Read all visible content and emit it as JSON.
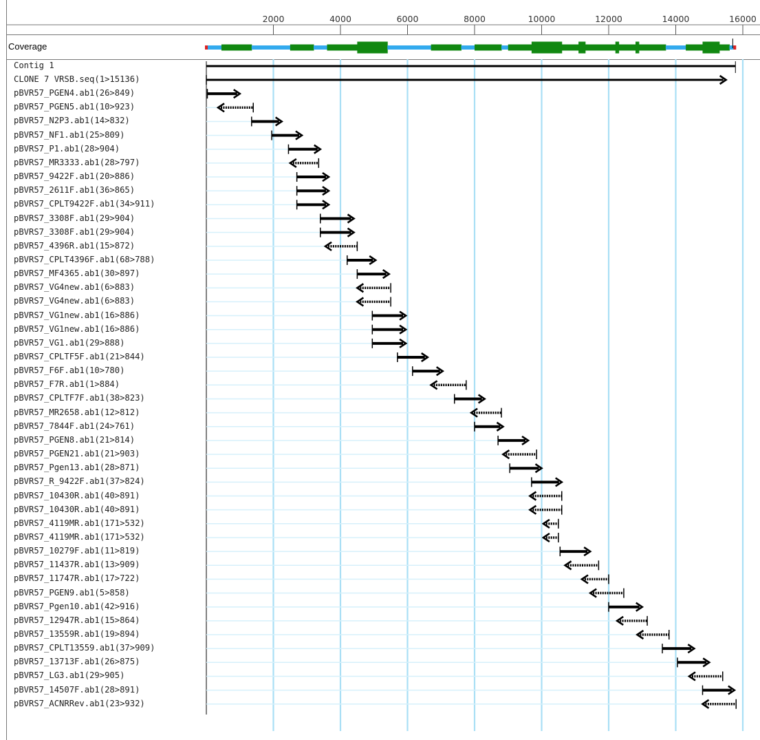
{
  "ruler": {
    "ticks": [
      {
        "value": 2000,
        "label": "2000"
      },
      {
        "value": 4000,
        "label": "4000"
      },
      {
        "value": 6000,
        "label": "6000"
      },
      {
        "value": 8000,
        "label": "8000"
      },
      {
        "value": 10000,
        "label": "10000"
      },
      {
        "value": 12000,
        "label": "12000"
      },
      {
        "value": 14000,
        "label": "14000"
      },
      {
        "value": 16000,
        "label": "16000"
      }
    ]
  },
  "coverage": {
    "label": "Coverage",
    "colors": {
      "single": "#33aaee",
      "double": "#118811",
      "end": "#dd2222"
    },
    "segments": [
      {
        "start": 0,
        "end": 450,
        "depth": 1
      },
      {
        "start": 450,
        "end": 1350,
        "depth": 2
      },
      {
        "start": 1350,
        "end": 2500,
        "depth": 1
      },
      {
        "start": 2500,
        "end": 3200,
        "depth": 2
      },
      {
        "start": 3200,
        "end": 3600,
        "depth": 1
      },
      {
        "start": 3600,
        "end": 4500,
        "depth": 2
      },
      {
        "start": 4500,
        "end": 5400,
        "depth": 3
      },
      {
        "start": 5400,
        "end": 6700,
        "depth": 1
      },
      {
        "start": 6700,
        "end": 7600,
        "depth": 2
      },
      {
        "start": 7600,
        "end": 8000,
        "depth": 1
      },
      {
        "start": 8000,
        "end": 8800,
        "depth": 2
      },
      {
        "start": 8800,
        "end": 9000,
        "depth": 1
      },
      {
        "start": 9000,
        "end": 9700,
        "depth": 2
      },
      {
        "start": 9700,
        "end": 10600,
        "depth": 3
      },
      {
        "start": 10600,
        "end": 11100,
        "depth": 2
      },
      {
        "start": 11100,
        "end": 11300,
        "depth": 3
      },
      {
        "start": 11300,
        "end": 12200,
        "depth": 2
      },
      {
        "start": 12200,
        "end": 12300,
        "depth": 3
      },
      {
        "start": 12300,
        "end": 12800,
        "depth": 2
      },
      {
        "start": 12800,
        "end": 12900,
        "depth": 3
      },
      {
        "start": 12900,
        "end": 13700,
        "depth": 2
      },
      {
        "start": 13700,
        "end": 14300,
        "depth": 1
      },
      {
        "start": 14300,
        "end": 14800,
        "depth": 2
      },
      {
        "start": 14800,
        "end": 15300,
        "depth": 3
      },
      {
        "start": 15300,
        "end": 15600,
        "depth": 2
      },
      {
        "start": 15600,
        "end": 15780,
        "depth": 1
      }
    ]
  },
  "contig": {
    "label": "Contig 1",
    "start": 0,
    "end": 15780
  },
  "reads": [
    {
      "label": "CLONE 7 VRSB.seq(1>15136)",
      "start": 0,
      "end": 15500,
      "dir": "F"
    },
    {
      "label": "pBVR57_PGEN4.ab1(26>849)",
      "start": 30,
      "end": 1000,
      "dir": "F"
    },
    {
      "label": "pBVR57_PGEN5.ab1(10>923)",
      "start": 350,
      "end": 1400,
      "dir": "R"
    },
    {
      "label": "pBVR57_N2P3.ab1(14>832)",
      "start": 1350,
      "end": 2250,
      "dir": "F"
    },
    {
      "label": "pBVR57_NF1.ab1(25>809)",
      "start": 1950,
      "end": 2850,
      "dir": "F"
    },
    {
      "label": "pBVRS7_P1.ab1(28>904)",
      "start": 2450,
      "end": 3400,
      "dir": "F"
    },
    {
      "label": "pBVRS7_MR3333.ab1(28>797)",
      "start": 2500,
      "end": 3350,
      "dir": "R"
    },
    {
      "label": "pBVR57_9422F.ab1(20>886)",
      "start": 2700,
      "end": 3650,
      "dir": "F"
    },
    {
      "label": "pBVR57_2611F.ab1(36>865)",
      "start": 2700,
      "end": 3650,
      "dir": "F"
    },
    {
      "label": "pBVRS7_CPLT9422F.ab1(34>911)",
      "start": 2700,
      "end": 3650,
      "dir": "F"
    },
    {
      "label": "pBVRS7_3308F.ab1(29>904)",
      "start": 3400,
      "end": 4400,
      "dir": "F"
    },
    {
      "label": "pBVRS7_3308F.ab1(29>904)",
      "start": 3400,
      "end": 4400,
      "dir": "F"
    },
    {
      "label": "pBVR57_4396R.ab1(15>872)",
      "start": 3550,
      "end": 4500,
      "dir": "R"
    },
    {
      "label": "pBVRS7_CPLT4396F.ab1(68>788)",
      "start": 4200,
      "end": 5050,
      "dir": "F"
    },
    {
      "label": "pBVRS7_MF4365.ab1(30>897)",
      "start": 4500,
      "end": 5450,
      "dir": "F"
    },
    {
      "label": "pBVRS7_VG4new.ab1(6>883)",
      "start": 4500,
      "end": 5500,
      "dir": "R"
    },
    {
      "label": "pBVRS7_VG4new.ab1(6>883)",
      "start": 4500,
      "end": 5500,
      "dir": "R"
    },
    {
      "label": "pBVRS7_VG1new.ab1(16>886)",
      "start": 4950,
      "end": 5950,
      "dir": "F"
    },
    {
      "label": "pBVR57_VG1new.ab1(16>886)",
      "start": 4950,
      "end": 5950,
      "dir": "F"
    },
    {
      "label": "pBVR57_VG1.ab1(29>888)",
      "start": 4950,
      "end": 5950,
      "dir": "F"
    },
    {
      "label": "pBVRS7_CPLTF5F.ab1(21>844)",
      "start": 5700,
      "end": 6600,
      "dir": "F"
    },
    {
      "label": "pBVR57_F6F.ab1(10>780)",
      "start": 6150,
      "end": 7050,
      "dir": "F"
    },
    {
      "label": "pBVR57_F7R.ab1(1>884)",
      "start": 6700,
      "end": 7750,
      "dir": "R"
    },
    {
      "label": "pBVRS7_CPLTF7F.ab1(38>823)",
      "start": 7400,
      "end": 8300,
      "dir": "F"
    },
    {
      "label": "pBVR57_MR2658.ab1(12>812)",
      "start": 7900,
      "end": 8800,
      "dir": "R"
    },
    {
      "label": "pBVR57_7844F.ab1(24>761)",
      "start": 8000,
      "end": 8850,
      "dir": "F"
    },
    {
      "label": "pBVR57_PGEN8.ab1(21>814)",
      "start": 8700,
      "end": 9600,
      "dir": "F"
    },
    {
      "label": "pBVR57_PGEN21.ab1(21>903)",
      "start": 8850,
      "end": 9850,
      "dir": "R"
    },
    {
      "label": "pBVR57_Pgen13.ab1(28>871)",
      "start": 9050,
      "end": 10000,
      "dir": "F"
    },
    {
      "label": "pBVRS7_R_9422F.ab1(37>824)",
      "start": 9700,
      "end": 10600,
      "dir": "F"
    },
    {
      "label": "pBVRS7_10430R.ab1(40>891)",
      "start": 9650,
      "end": 10600,
      "dir": "R"
    },
    {
      "label": "pBVRS7_10430R.ab1(40>891)",
      "start": 9650,
      "end": 10600,
      "dir": "R"
    },
    {
      "label": "pBVRS7_4119MR.ab1(171>532)",
      "start": 10050,
      "end": 10500,
      "dir": "R"
    },
    {
      "label": "pBVRS7_4119MR.ab1(171>532)",
      "start": 10050,
      "end": 10500,
      "dir": "R"
    },
    {
      "label": "pBVR57_10279F.ab1(11>819)",
      "start": 10550,
      "end": 11450,
      "dir": "F"
    },
    {
      "label": "pBVR57_11437R.ab1(13>909)",
      "start": 10700,
      "end": 11700,
      "dir": "R"
    },
    {
      "label": "pBVR57_11747R.ab1(17>722)",
      "start": 11200,
      "end": 12000,
      "dir": "R"
    },
    {
      "label": "pBVR57_PGEN9.ab1(5>858)",
      "start": 11450,
      "end": 12450,
      "dir": "R"
    },
    {
      "label": "pBVRS7_Pgen10.ab1(42>916)",
      "start": 12000,
      "end": 13000,
      "dir": "F"
    },
    {
      "label": "pBVR57_12947R.ab1(15>864)",
      "start": 12250,
      "end": 13150,
      "dir": "R"
    },
    {
      "label": "pBVR57_13559R.ab1(19>894)",
      "start": 12850,
      "end": 13800,
      "dir": "R"
    },
    {
      "label": "pBVRS7_CPLT13559.ab1(37>909)",
      "start": 13600,
      "end": 14550,
      "dir": "F"
    },
    {
      "label": "pBVR57_13713F.ab1(26>875)",
      "start": 14050,
      "end": 15000,
      "dir": "F"
    },
    {
      "label": "pBVR57_LG3.ab1(29>905)",
      "start": 14400,
      "end": 15400,
      "dir": "R"
    },
    {
      "label": "pBVR57_14507F.ab1(28>891)",
      "start": 14800,
      "end": 15750,
      "dir": "F"
    },
    {
      "label": "pBVRS7_ACNRRev.ab1(23>932)",
      "start": 14800,
      "end": 15800,
      "dir": "R"
    }
  ]
}
